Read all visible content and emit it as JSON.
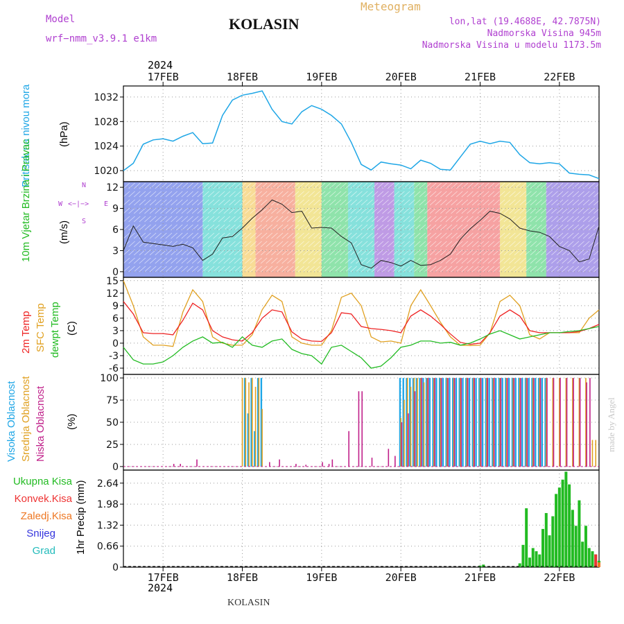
{
  "header": {
    "model_label": "Model",
    "model_value": "wrf−nmm_v3.9.1  e1km",
    "title": "KOLASIN",
    "meteogram_label": "Meteogram",
    "lonlat": "lon,lat (19.4688E, 42.7875N)",
    "elevation": "Nadmorska Visina 945m",
    "model_elevation": "Nadmorska Visina u modelu 1173.5m",
    "footer": "KOLASIN",
    "credit": "made by Angel"
  },
  "colors": {
    "pressure": "#1ea6e6",
    "temp": "#ee2222",
    "sfc_temp": "#e0a020",
    "dewpt": "#22bb22",
    "high_cloud": "#1ea6e6",
    "mid_cloud": "#e0a020",
    "low_cloud": "#c0208a",
    "total_precip": "#22bb22",
    "conv_precip": "#ee3333",
    "frz_precip": "#ee7722",
    "snow": "#3333dd",
    "graupel": "#22bbbb",
    "purple": "#b040d0"
  },
  "chart_data": [
    {
      "type": "line",
      "panel": "pressure",
      "title": "",
      "ylabel_colored": "Pritisak na nivou mora",
      "ylabel_unit": "(hPa)",
      "ylim": [
        1018.2,
        1033.8
      ],
      "yticks": [
        1020,
        1024,
        1028,
        1032
      ],
      "grid": true,
      "x_hours": [
        0,
        3,
        6,
        9,
        12,
        15,
        18,
        21,
        24,
        27,
        30,
        33,
        36,
        39,
        42,
        45,
        48,
        51,
        54,
        57,
        60,
        63,
        66,
        69,
        72,
        75,
        78,
        81,
        84,
        87,
        90,
        93,
        96,
        99,
        102,
        105,
        108,
        111,
        114,
        117,
        120,
        123,
        126,
        129,
        132,
        135,
        138,
        141,
        144
      ],
      "series": [
        {
          "name": "Pritisak na nivou mora",
          "values": [
            1020.0,
            1021.2,
            1024.3,
            1025.0,
            1025.2,
            1024.8,
            1025.6,
            1026.2,
            1024.4,
            1024.5,
            1029.0,
            1031.5,
            1032.3,
            1032.6,
            1033.0,
            1030.0,
            1028.0,
            1027.6,
            1029.6,
            1030.6,
            1030.0,
            1029.0,
            1027.6,
            1024.6,
            1021.0,
            1020.1,
            1021.4,
            1021.1,
            1020.9,
            1020.3,
            1021.7,
            1021.2,
            1020.2,
            1020.1,
            1022.2,
            1024.3,
            1024.8,
            1024.4,
            1024.8,
            1024.6,
            1022.6,
            1021.3,
            1021.1,
            1021.3,
            1021.1,
            1019.6,
            1019.4,
            1019.3,
            1018.7
          ]
        }
      ]
    },
    {
      "type": "line",
      "panel": "wind",
      "ylabel_colored": "10m Vjetar Brzina i Pravac",
      "ylabel_unit": "(m/s)",
      "compass": {
        "n": "N",
        "s": "S",
        "w": "W",
        "e": "E",
        "arrows": "<−|−>"
      },
      "ylim": [
        -0.8,
        12.8
      ],
      "yticks": [
        0,
        3,
        6,
        9,
        12
      ],
      "grid": true,
      "x_hours": [
        0,
        3,
        6,
        9,
        12,
        15,
        18,
        21,
        24,
        27,
        30,
        33,
        36,
        39,
        42,
        45,
        48,
        51,
        54,
        57,
        60,
        63,
        66,
        69,
        72,
        75,
        78,
        81,
        84,
        87,
        90,
        93,
        96,
        99,
        102,
        105,
        108,
        111,
        114,
        117,
        120,
        123,
        126,
        129,
        132,
        135,
        138,
        141,
        144
      ],
      "series": [
        {
          "name": "wind speed",
          "values": [
            3.0,
            6.5,
            4.2,
            4.0,
            3.8,
            3.6,
            3.9,
            3.4,
            1.6,
            2.5,
            4.8,
            5.0,
            6.2,
            7.6,
            8.8,
            10.2,
            9.6,
            8.4,
            8.6,
            6.2,
            6.3,
            6.2,
            5.0,
            4.1,
            1.0,
            0.5,
            1.6,
            1.3,
            0.8,
            1.6,
            0.9,
            1.0,
            1.6,
            2.5,
            4.6,
            6.1,
            7.3,
            8.6,
            8.3,
            7.5,
            6.2,
            5.8,
            5.6,
            5.0,
            3.6,
            3.0,
            1.4,
            1.8,
            6.5
          ]
        }
      ]
    },
    {
      "type": "line",
      "panel": "temperature",
      "ylabel_temp": "2m Temp",
      "ylabel_sfc": "SFC Temp",
      "ylabel_dewpt": "dewpt Temp",
      "ylabel_unit": "(C)",
      "ylim": [
        -7.5,
        15.8
      ],
      "yticks": [
        -6,
        -3,
        0,
        3,
        6,
        9,
        12,
        15
      ],
      "grid": true,
      "x_hours": [
        0,
        3,
        6,
        9,
        12,
        15,
        18,
        21,
        24,
        27,
        30,
        33,
        36,
        39,
        42,
        45,
        48,
        51,
        54,
        57,
        60,
        63,
        66,
        69,
        72,
        75,
        78,
        81,
        84,
        87,
        90,
        93,
        96,
        99,
        102,
        105,
        108,
        111,
        114,
        117,
        120,
        123,
        126,
        129,
        132,
        135,
        138,
        141,
        144
      ],
      "series": [
        {
          "name": "2m Temp",
          "values": [
            10.0,
            7.0,
            2.5,
            2.3,
            2.3,
            2.0,
            5.5,
            9.6,
            8.0,
            3.0,
            1.5,
            0.8,
            0.5,
            2.5,
            6.0,
            8.0,
            7.5,
            2.7,
            1.0,
            0.5,
            0.4,
            2.5,
            7.3,
            7.0,
            4.0,
            3.5,
            3.3,
            3.0,
            2.5,
            6.5,
            8.0,
            6.5,
            4.5,
            2.2,
            0.2,
            -0.3,
            0.0,
            2.5,
            6.5,
            8.0,
            6.5,
            3.0,
            2.5,
            2.5,
            2.5,
            2.5,
            2.8,
            3.5,
            4.5
          ]
        },
        {
          "name": "SFC Temp",
          "values": [
            15.0,
            9.0,
            1.5,
            -0.5,
            -0.5,
            -0.8,
            7.5,
            12.8,
            10.0,
            1.5,
            0.0,
            -0.5,
            -0.5,
            2.0,
            8.0,
            11.5,
            10.0,
            1.5,
            0.0,
            -0.5,
            -0.5,
            3.0,
            11.0,
            12.0,
            9.0,
            1.5,
            0.3,
            0.5,
            0.0,
            9.0,
            12.8,
            9.0,
            5.0,
            1.5,
            -0.5,
            -0.6,
            -0.5,
            2.5,
            10.0,
            11.5,
            9.0,
            2.0,
            1.0,
            2.5,
            2.5,
            2.5,
            2.5,
            6.0,
            8.0
          ]
        },
        {
          "name": "dewpt Temp",
          "values": [
            -1.0,
            -4.0,
            -5.0,
            -5.0,
            -4.5,
            -3.0,
            -1.0,
            0.5,
            1.5,
            0.0,
            0.2,
            -1.0,
            1.5,
            -0.5,
            -1.0,
            0.5,
            1.0,
            -1.5,
            -2.5,
            -3.0,
            -5.0,
            -1.0,
            -0.5,
            -2.0,
            -3.5,
            -6.0,
            -5.5,
            -3.5,
            -1.0,
            -0.5,
            0.5,
            0.5,
            0.0,
            0.2,
            -0.5,
            0.0,
            1.0,
            2.2,
            3.0,
            2.0,
            1.0,
            1.5,
            2.0,
            2.5,
            2.5,
            2.8,
            3.0,
            3.5,
            4.0
          ]
        }
      ]
    },
    {
      "type": "bar",
      "panel": "cloud",
      "ylabel_high": "Visoka Oblacnost",
      "ylabel_mid": "Srednja Oblacnost",
      "ylabel_low": "Niska Oblacnost",
      "ylabel_unit": "(%)",
      "ylim": [
        -4,
        104
      ],
      "yticks": [
        0,
        25,
        50,
        75,
        100
      ],
      "grid": true,
      "series": [
        {
          "name": "Visoka Oblacnost",
          "x_hours": [
            37,
            38,
            39,
            40,
            41,
            42,
            84,
            85,
            86,
            87,
            88,
            89,
            90,
            91,
            92,
            93,
            94,
            95,
            96,
            97,
            98,
            99,
            100,
            101,
            102,
            103,
            104,
            105,
            106,
            107,
            108,
            109,
            110,
            111,
            112,
            113,
            114,
            115,
            116,
            117,
            118,
            119,
            120,
            121,
            122,
            123,
            124,
            125,
            126,
            127,
            128
          ],
          "values": [
            100,
            60,
            100,
            40,
            100,
            100,
            100,
            100,
            100,
            100,
            100,
            100,
            100,
            100,
            100,
            100,
            100,
            100,
            100,
            100,
            100,
            100,
            100,
            100,
            100,
            100,
            100,
            100,
            100,
            100,
            100,
            100,
            100,
            100,
            100,
            100,
            100,
            100,
            100,
            100,
            100,
            100,
            100,
            100,
            100,
            100,
            100,
            100,
            100,
            100,
            100
          ]
        },
        {
          "name": "Srednja Oblacnost",
          "x_hours": [
            36,
            37,
            38,
            39,
            40,
            41,
            42,
            84,
            85,
            86,
            87,
            88,
            89,
            90,
            91,
            92,
            94,
            96,
            98,
            100,
            102,
            104,
            106,
            108,
            110,
            112,
            114,
            116,
            118,
            120,
            122,
            124,
            126,
            128,
            130,
            132,
            134,
            136,
            138,
            140,
            142,
            143
          ],
          "values": [
            100,
            100,
            95,
            100,
            90,
            100,
            65,
            55,
            75,
            100,
            90,
            100,
            100,
            100,
            95,
            100,
            100,
            100,
            100,
            100,
            100,
            100,
            100,
            100,
            100,
            100,
            100,
            100,
            100,
            100,
            100,
            100,
            100,
            100,
            100,
            100,
            100,
            100,
            100,
            100,
            30,
            30
          ]
        },
        {
          "name": "Niska Oblacnost",
          "x_hours": [
            15,
            17,
            22,
            44,
            47,
            52,
            55,
            60,
            62,
            63,
            68,
            71,
            72,
            75,
            80,
            82,
            84,
            86,
            88,
            90,
            92,
            94,
            96,
            98,
            100,
            102,
            104,
            106,
            108,
            110,
            112,
            114,
            116,
            118,
            120,
            122,
            124,
            126,
            128,
            130,
            132,
            134,
            136,
            138,
            140,
            141
          ],
          "values": [
            3,
            3,
            8,
            5,
            8,
            3,
            2,
            5,
            3,
            8,
            40,
            85,
            85,
            10,
            20,
            12,
            50,
            60,
            85,
            100,
            100,
            100,
            100,
            100,
            100,
            100,
            100,
            100,
            100,
            100,
            100,
            100,
            100,
            100,
            100,
            100,
            100,
            100,
            100,
            100,
            100,
            100,
            100,
            100,
            95,
            100
          ]
        }
      ]
    },
    {
      "type": "bar",
      "panel": "precip",
      "ylabel": "1hr Precip (mm)",
      "ylim": [
        0,
        3.05
      ],
      "yticks": [
        "0",
        "0.66",
        "1.32",
        "1.98",
        "2.64"
      ],
      "ytick_values": [
        0,
        0.66,
        1.32,
        1.98,
        2.64
      ],
      "grid": true,
      "legend": [
        "Ukupna Kisa",
        "Konvek.Kisa",
        "Zaledj.Kisa",
        "Snijeg",
        "Grad"
      ],
      "series": [
        {
          "name": "Ukupna Kisa",
          "x_hours": [
            108,
            109,
            120,
            121,
            122,
            123,
            124,
            125,
            126,
            127,
            128,
            129,
            130,
            131,
            132,
            133,
            134,
            135,
            136,
            137,
            138,
            139,
            140,
            141,
            142,
            143,
            144
          ],
          "values": [
            0.05,
            0.08,
            0.12,
            0.7,
            1.85,
            0.3,
            0.6,
            0.5,
            0.4,
            1.2,
            1.7,
            1.0,
            1.6,
            2.3,
            2.5,
            2.75,
            3.0,
            2.6,
            1.8,
            1.3,
            2.1,
            0.8,
            1.3,
            0.6,
            0.5,
            0.4,
            0.2
          ]
        },
        {
          "name": "Konvek.Kisa",
          "x_hours": [
            143
          ],
          "values": [
            0.4
          ]
        },
        {
          "name": "Zaledj.Kisa",
          "x_hours": [
            144
          ],
          "values": [
            0.15
          ]
        }
      ]
    }
  ],
  "xaxis": {
    "day_labels": [
      "17FEB",
      "18FEB",
      "19FEB",
      "20FEB",
      "21FEB",
      "22FEB"
    ],
    "day_hours": [
      12,
      36,
      60,
      84,
      108,
      132
    ],
    "year": "2024",
    "xmax_hours": 144
  }
}
